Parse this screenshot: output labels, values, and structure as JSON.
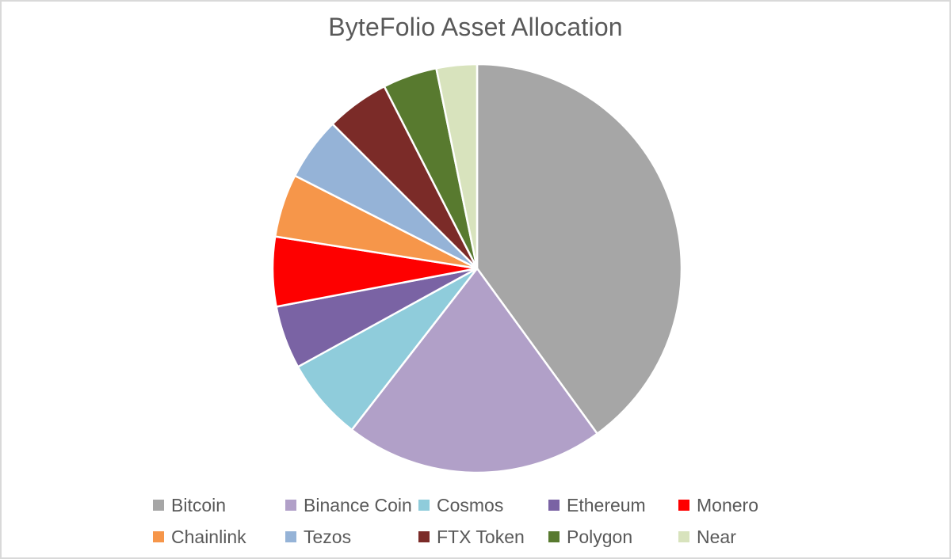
{
  "frame": {
    "background_color": "#ffffff",
    "border_color": "#d9d9d9"
  },
  "chart": {
    "title": "ByteFolio Asset Allocation",
    "title_color": "#595959",
    "text_color": "#595959"
  },
  "chart_data": {
    "type": "pie",
    "title": "ByteFolio Asset Allocation",
    "values_unit": "percent_of_total",
    "start_angle_deg": 0,
    "direction": "clockwise",
    "grid": false,
    "legend_position": "bottom",
    "legend_rows": 2,
    "legend_columns": 5,
    "slice_gap_color": "#ffffff",
    "slices": [
      {
        "label": "Bitcoin",
        "value": 40.0,
        "color": "#a6a6a6"
      },
      {
        "label": "Binance Coin",
        "value": 20.5,
        "color": "#b1a0c8"
      },
      {
        "label": "Cosmos",
        "value": 6.5,
        "color": "#8fccdb"
      },
      {
        "label": "Ethereum",
        "value": 5.0,
        "color": "#7a63a4"
      },
      {
        "label": "Monero",
        "value": 5.5,
        "color": "#fe0000"
      },
      {
        "label": "Chainlink",
        "value": 5.0,
        "color": "#f6964a"
      },
      {
        "label": "Tezos",
        "value": 5.0,
        "color": "#95b3d7"
      },
      {
        "label": "FTX Token",
        "value": 5.0,
        "color": "#7b2b28"
      },
      {
        "label": "Polygon",
        "value": 4.3,
        "color": "#587a2f"
      },
      {
        "label": "Near",
        "value": 3.2,
        "color": "#d8e3bd"
      }
    ]
  }
}
